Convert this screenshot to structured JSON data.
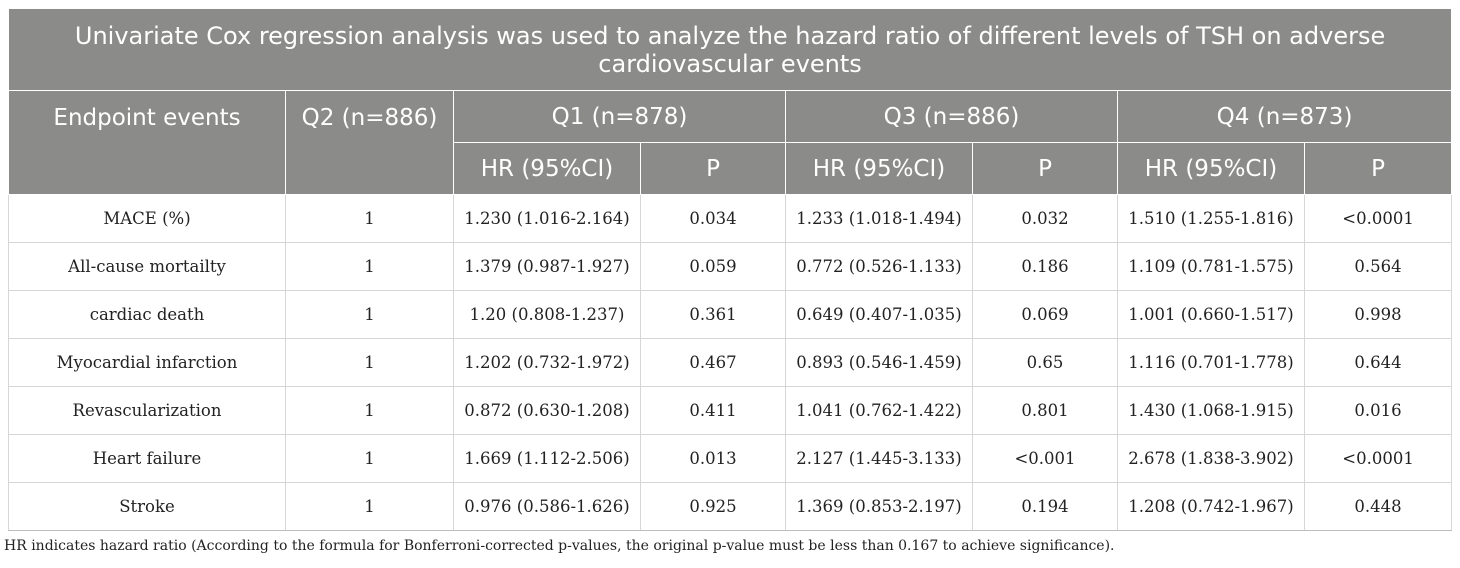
{
  "title": "Univariate Cox regression analysis was used to analyze the hazard ratio of different levels of TSH on adverse cardiovascular events",
  "header": {
    "endpoint": "Endpoint events",
    "q2": "Q2 (n=886)",
    "q1": "Q1 (n=878)",
    "q3": "Q3 (n=886)",
    "q4": "Q4 (n=873)",
    "hr": "HR (95%CI)",
    "p": "P"
  },
  "rows": [
    {
      "event": "MACE (%)",
      "q2": "1",
      "q1_hr": "1.230 (1.016-2.164)",
      "q1_p": "0.034",
      "q3_hr": "1.233 (1.018-1.494)",
      "q3_p": "0.032",
      "q4_hr": "1.510 (1.255-1.816)",
      "q4_p": "<0.0001"
    },
    {
      "event": "All-cause mortailty",
      "q2": "1",
      "q1_hr": "1.379 (0.987-1.927)",
      "q1_p": "0.059",
      "q3_hr": "0.772 (0.526-1.133)",
      "q3_p": "0.186",
      "q4_hr": "1.109 (0.781-1.575)",
      "q4_p": "0.564"
    },
    {
      "event": "cardiac death",
      "q2": "1",
      "q1_hr": "1.20 (0.808-1.237)",
      "q1_p": "0.361",
      "q3_hr": "0.649 (0.407-1.035)",
      "q3_p": "0.069",
      "q4_hr": "1.001 (0.660-1.517)",
      "q4_p": "0.998"
    },
    {
      "event": "Myocardial infarction",
      "q2": "1",
      "q1_hr": "1.202 (0.732-1.972)",
      "q1_p": "0.467",
      "q3_hr": "0.893 (0.546-1.459)",
      "q3_p": "0.65",
      "q4_hr": "1.116 (0.701-1.778)",
      "q4_p": "0.644"
    },
    {
      "event": "Revascularization",
      "q2": "1",
      "q1_hr": "0.872 (0.630-1.208)",
      "q1_p": "0.411",
      "q3_hr": "1.041 (0.762-1.422)",
      "q3_p": "0.801",
      "q4_hr": "1.430 (1.068-1.915)",
      "q4_p": "0.016"
    },
    {
      "event": "Heart failure",
      "q2": "1",
      "q1_hr": "1.669 (1.112-2.506)",
      "q1_p": "0.013",
      "q3_hr": "2.127 (1.445-3.133)",
      "q3_p": "<0.001",
      "q4_hr": "2.678 (1.838-3.902)",
      "q4_p": "<0.0001"
    },
    {
      "event": "Stroke",
      "q2": "1",
      "q1_hr": "0.976 (0.586-1.626)",
      "q1_p": "0.925",
      "q3_hr": "1.369 (0.853-2.197)",
      "q3_p": "0.194",
      "q4_hr": "1.208 (0.742-1.967)",
      "q4_p": "0.448"
    }
  ],
  "footnote": "HR indicates hazard ratio (According to the formula for Bonferroni-corrected p-values, the original p-value must be less than 0.167 to achieve significance).",
  "colors": {
    "header_bg": "#8b8b8a",
    "header_text": "#ffffff",
    "grid": "#d6d6d6"
  }
}
